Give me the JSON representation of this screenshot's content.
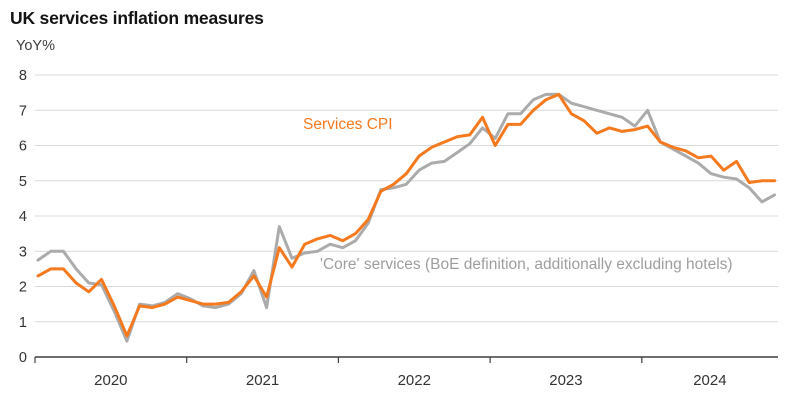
{
  "header": {
    "title": "UK services inflation measures",
    "unit_label": "YoY%"
  },
  "chart_data": {
    "type": "line",
    "title": "UK services inflation measures",
    "ylabel": "YoY%",
    "ylim": [
      0,
      8
    ],
    "y_ticks": [
      0,
      1,
      2,
      3,
      4,
      5,
      6,
      7,
      8
    ],
    "grid": "horizontal",
    "legend_position": "inline-annotations",
    "x_start": "2020-01",
    "x_end": "2024-11",
    "x_frequency": "monthly",
    "x_year_labels": [
      "2020",
      "2021",
      "2022",
      "2023",
      "2024"
    ],
    "series": [
      {
        "name": "Services CPI",
        "color": "#f5791e",
        "values": [
          2.3,
          2.5,
          2.5,
          2.1,
          1.85,
          2.2,
          1.45,
          0.6,
          1.45,
          1.4,
          1.5,
          1.7,
          1.6,
          1.5,
          1.5,
          1.55,
          1.85,
          2.3,
          1.7,
          3.1,
          2.55,
          3.2,
          3.35,
          3.45,
          3.3,
          3.5,
          3.9,
          4.7,
          4.9,
          5.2,
          5.7,
          5.95,
          6.1,
          6.25,
          6.3,
          6.8,
          6.0,
          6.6,
          6.6,
          7.0,
          7.3,
          7.45,
          6.9,
          6.7,
          6.35,
          6.5,
          6.4,
          6.45,
          6.55,
          6.1,
          5.95,
          5.85,
          5.65,
          5.7,
          5.3,
          5.55,
          4.95,
          5.0,
          5.0
        ]
      },
      {
        "name": "'Core' services (BoE definition, additionally excluding hotels)",
        "color": "#ababab",
        "values": [
          2.75,
          3.0,
          3.0,
          2.5,
          2.1,
          2.05,
          1.3,
          0.45,
          1.5,
          1.45,
          1.55,
          1.8,
          1.65,
          1.45,
          1.4,
          1.5,
          1.8,
          2.45,
          1.4,
          3.7,
          2.8,
          2.95,
          3.0,
          3.2,
          3.1,
          3.3,
          3.8,
          4.75,
          4.8,
          4.9,
          5.3,
          5.5,
          5.55,
          5.8,
          6.05,
          6.5,
          6.2,
          6.9,
          6.9,
          7.3,
          7.45,
          7.45,
          7.2,
          7.1,
          7.0,
          6.9,
          6.8,
          6.55,
          7.0,
          6.1,
          5.9,
          5.7,
          5.5,
          5.2,
          5.1,
          5.05,
          4.8,
          4.4,
          4.6
        ]
      }
    ],
    "annotations": [
      {
        "text": "Services CPI",
        "color": "#f5791e"
      },
      {
        "text": "'Core' services (BoE definition, additionally excluding hotels)",
        "color": "#9e9e9e"
      }
    ]
  },
  "colors": {
    "gridline": "#d9d9d9",
    "axis": "#3f3f3f",
    "tick_label": "#333333"
  }
}
